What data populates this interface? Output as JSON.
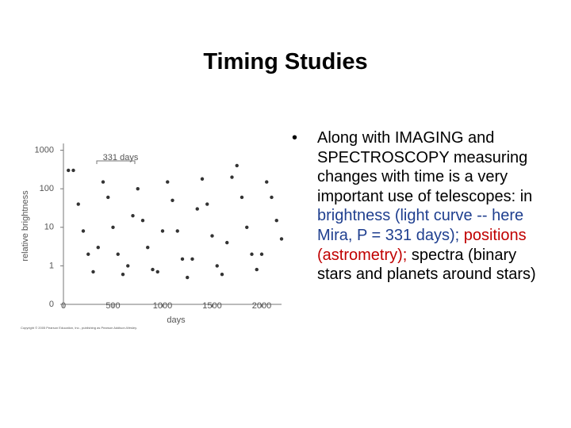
{
  "slide": {
    "title": "Timing Studies",
    "bullet": [
      {
        "text": "Along with IMAGING and SPECTROSCOPY measuring changes with time is a very important use of telescopes: in ",
        "color": "#000000"
      },
      {
        "text": "brightness (light curve -- here Mira, P = 331 days);",
        "color": "#1f3f8f"
      },
      {
        "text": " ",
        "color": "#000000"
      },
      {
        "text": "positions (astrometry);",
        "color": "#c00000"
      },
      {
        "text": " spectra (binary stars and planets around stars)",
        "color": "#000000"
      }
    ]
  },
  "chart_data": {
    "type": "scatter",
    "xlabel": "days",
    "ylabel": "relative brightness",
    "annotation": "331 days",
    "credit": "Copyright © 2005 Pearson Education, Inc., publishing as Pearson Addison-Wesley.",
    "log_y": true,
    "color": "#333333",
    "xlim": [
      0,
      2200
    ],
    "xticks": [
      0,
      500,
      1000,
      1500,
      2000
    ],
    "ylim": [
      0.1,
      1500
    ],
    "yticks": [
      {
        "value": 0.1,
        "label": "0"
      },
      1,
      10,
      100,
      1000
    ],
    "x": [
      50,
      100,
      150,
      200,
      250,
      300,
      350,
      400,
      450,
      500,
      550,
      600,
      650,
      700,
      750,
      800,
      850,
      900,
      950,
      1000,
      1050,
      1100,
      1150,
      1200,
      1250,
      1300,
      1350,
      1400,
      1450,
      1500,
      1550,
      1600,
      1650,
      1700,
      1750,
      1800,
      1850,
      1900,
      1950,
      2000,
      2050,
      2100,
      2150,
      2200
    ],
    "values": [
      300,
      300,
      40,
      8,
      2,
      0.7,
      3,
      150,
      60,
      10,
      2,
      0.6,
      1,
      20,
      100,
      15,
      3,
      0.8,
      0.7,
      8,
      150,
      50,
      8,
      1.5,
      0.5,
      1.5,
      30,
      180,
      40,
      6,
      1,
      0.6,
      4,
      200,
      400,
      60,
      10,
      2,
      0.8,
      2,
      150,
      60,
      15,
      5
    ]
  }
}
